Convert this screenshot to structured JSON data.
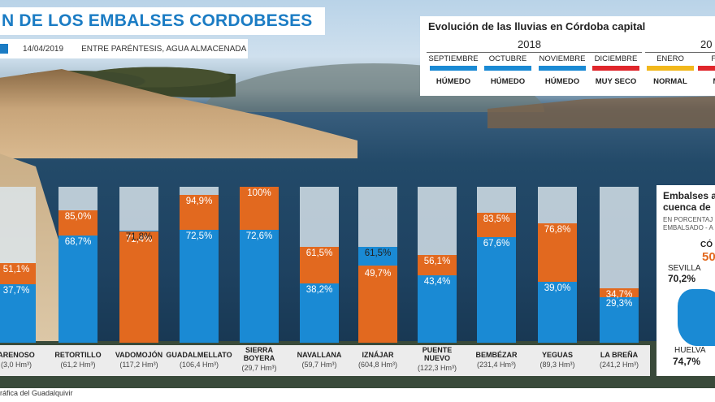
{
  "header": {
    "title": "N DE LOS EMBALSES CORDOBESES",
    "date": "14/04/2019",
    "note": "ENTRE PARÉNTESIS, AGUA ALMACENADA"
  },
  "rain": {
    "title": "Evolución de las lluvias en Córdoba capital",
    "year_a": "2018",
    "year_b": "20",
    "months": [
      {
        "name": "SEPTIEMBRE",
        "status": "HÚMEDO",
        "color": "#1a8ad4"
      },
      {
        "name": "OCTUBRE",
        "status": "HÚMEDO",
        "color": "#1a8ad4"
      },
      {
        "name": "NOVIEMBRE",
        "status": "HÚMEDO",
        "color": "#1a8ad4"
      },
      {
        "name": "DICIEMBRE",
        "status": "MUY SECO",
        "color": "#e0262b"
      },
      {
        "name": "ENERO",
        "status": "NORMAL",
        "color": "#f2b81c"
      },
      {
        "name": "FEBR",
        "status": "MUY",
        "color": "#e0262b"
      }
    ]
  },
  "chart_data": {
    "type": "bar",
    "ylim": [
      0,
      100
    ],
    "colors": {
      "previous": "#e2691f",
      "current": "#1a8ad4"
    },
    "reservoirs": [
      {
        "name": "ARENOSO",
        "capacity": "(3,0 Hm³)",
        "current": 37.7,
        "previous": 51.1,
        "current_label": "37,7%",
        "previous_label": "51,1%"
      },
      {
        "name": "RETORTILLO",
        "capacity": "(61,2 Hm³)",
        "current": 68.7,
        "previous": 85.0,
        "current_label": "68,7%",
        "previous_label": "85,0%"
      },
      {
        "name": "VADOMOJÓN",
        "capacity": "(117,2 Hm³)",
        "current": 71.8,
        "previous": 71.4,
        "current_label": "71,8%",
        "previous_label": "71,4%"
      },
      {
        "name": "GUADALMELLATO",
        "capacity": "(106,4 Hm³)",
        "current": 72.5,
        "previous": 94.9,
        "current_label": "72,5%",
        "previous_label": "94,9%"
      },
      {
        "name": "SIERRA\nBOYERA",
        "capacity": "(29,7 Hm³)",
        "current": 72.6,
        "previous": 100,
        "current_label": "72,6%",
        "previous_label": "100%"
      },
      {
        "name": "NAVALLANA",
        "capacity": "(59,7 Hm³)",
        "current": 38.2,
        "previous": 61.5,
        "current_label": "38,2%",
        "previous_label": "61,5%"
      },
      {
        "name": "IZNÁJAR",
        "capacity": "(604,8 Hm³)",
        "current": 61.5,
        "previous": 49.7,
        "current_label": "61,5%",
        "previous_label": "49,7%"
      },
      {
        "name": "PUENTE\nNUEVO",
        "capacity": "(122,3 Hm³)",
        "current": 43.4,
        "previous": 56.1,
        "current_label": "43,4%",
        "previous_label": "56,1%"
      },
      {
        "name": "BEMBÉZAR",
        "capacity": "(231,4 Hm³)",
        "current": 67.6,
        "previous": 83.5,
        "current_label": "67,6%",
        "previous_label": "83,5%"
      },
      {
        "name": "YEGUAS",
        "capacity": "(89,3 Hm³)",
        "current": 39.0,
        "previous": 76.8,
        "current_label": "39,0%",
        "previous_label": "76,8%"
      },
      {
        "name": "LA BREÑA",
        "capacity": "(241,2 Hm³)",
        "current": 29.3,
        "previous": 34.7,
        "current_label": "29,3%",
        "previous_label": "34,7%"
      }
    ]
  },
  "side_panel": {
    "title_1": "Embalses a",
    "title_2": "cuenca de",
    "sub_1": "EN PORCENTAJ",
    "sub_2": "EMBALSADO - A",
    "cordoba_label": "CÓ",
    "cordoba_value": "50",
    "sevilla_label": "SEVILLA",
    "sevilla_value": "70,2%",
    "huelva_label": "HUELVA",
    "huelva_value": "74,7%"
  },
  "source": "ráfica del Guadalquivir"
}
